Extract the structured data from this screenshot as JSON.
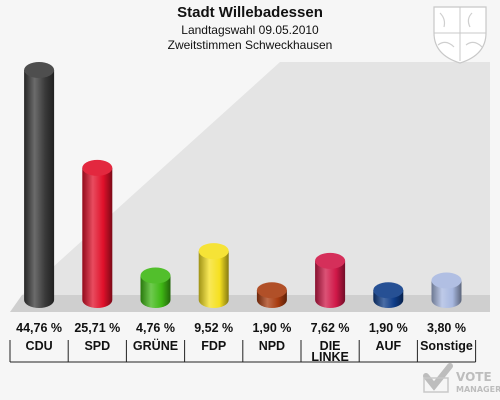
{
  "chart_data": {
    "type": "bar",
    "title": "Stadt Willebadessen",
    "subtitle_1": "Landtagswahl 09.05.2010",
    "subtitle_2": "Zweitstimmen Schweckhausen",
    "categories": [
      "CDU",
      "SPD",
      "GRÜNE",
      "FDP",
      "NPD",
      "DIE LINKE",
      "AUF",
      "Sonstige"
    ],
    "category_lines": [
      [
        "CDU"
      ],
      [
        "SPD"
      ],
      [
        "GRÜNE"
      ],
      [
        "FDP"
      ],
      [
        "NPD"
      ],
      [
        "DIE",
        "LINKE"
      ],
      [
        "AUF"
      ],
      [
        "Sonstige"
      ]
    ],
    "values": [
      44.76,
      25.71,
      4.76,
      9.52,
      1.9,
      7.62,
      1.9,
      3.8
    ],
    "value_labels": [
      "44,76 %",
      "25,71 %",
      "4,76 %",
      "9,52 %",
      "1,90 %",
      "7,62 %",
      "1,90 %",
      "3,80 %"
    ],
    "colors": [
      "#3a3a3a",
      "#e0102a",
      "#3fb814",
      "#f5e020",
      "#a83c10",
      "#d01848",
      "#0e3c88",
      "#a8b8e0"
    ],
    "ylim": [
      0,
      44.76
    ],
    "grid": false,
    "legend": "none"
  },
  "branding": {
    "logo_text_line1": "VOTE",
    "logo_text_line2": "MANAGER"
  },
  "icons": {
    "coat_of_arms": "nrw-coat-of-arms-icon",
    "vote_manager": "vote-manager-check-icon"
  }
}
